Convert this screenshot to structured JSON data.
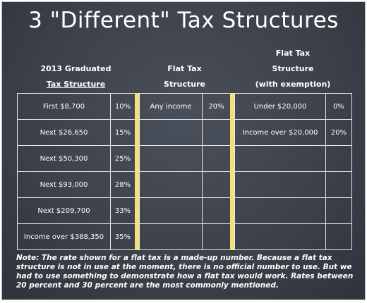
{
  "title": "3 \"Different\" Tax Structures",
  "sections": [
    {
      "header": [
        "2013 Graduated",
        "Tax Structure"
      ],
      "rows": [
        [
          "First $8,700",
          "10%"
        ],
        [
          "Next $26,650",
          "15%"
        ],
        [
          "Next $50,300",
          "25%"
        ],
        [
          "Next $93,000",
          "28%"
        ],
        [
          "Next $209,700",
          "33%"
        ],
        [
          "Income over $388,350",
          "35%"
        ]
      ]
    },
    {
      "header": [
        "Flat Tax",
        "Structure"
      ],
      "rows": [
        [
          "Any income",
          "20%"
        ]
      ]
    },
    {
      "header": [
        "Flat Tax",
        "Structure",
        "(with exemption)"
      ],
      "rows": [
        [
          "Under $20,000",
          "0%"
        ],
        [
          "Income over $20,000",
          "20%"
        ]
      ]
    }
  ],
  "note": "Note: The rate shown for a flat tax is a made-up number.  Because a flat tax structure is not in use at the moment, there is no official number to use. But we had to use something to demonstrate how a flat tax would work. Rates between 20 percent and 30 percent are the most commonly mentioned."
}
